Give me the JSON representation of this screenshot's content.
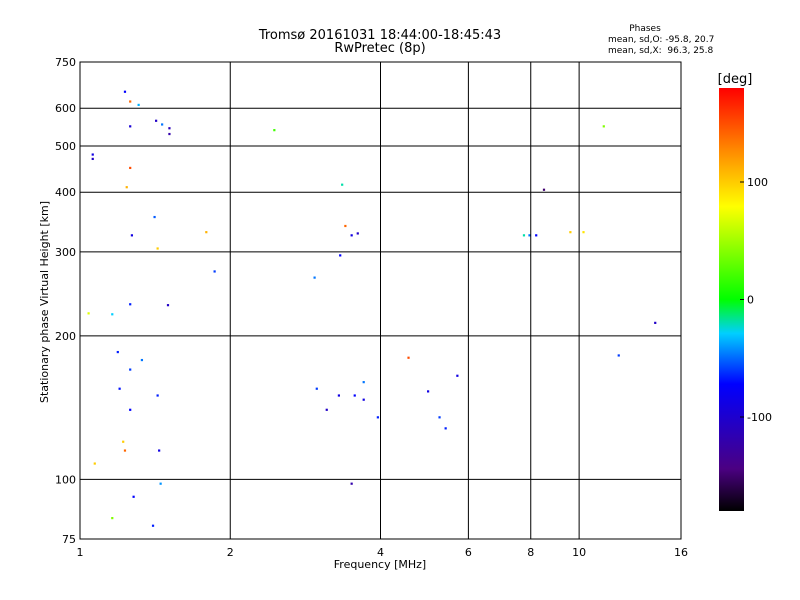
{
  "chart_data": {
    "type": "scatter",
    "title": "Tromsø 20161031 18:44:00-18:45:43",
    "subtitle": "RwPretec (8p)",
    "xlabel": "Frequency [MHz]",
    "ylabel": "Stationary phase Virtual Height [km]",
    "x_scale": "log",
    "y_scale": "log",
    "xlim": [
      1,
      16
    ],
    "ylim": [
      75,
      750
    ],
    "x_ticks": [
      1,
      2,
      4,
      6,
      8,
      10,
      16
    ],
    "y_ticks": [
      75,
      100,
      200,
      300,
      400,
      500,
      600,
      750
    ],
    "grid": true,
    "legend": {
      "heading": "Phases",
      "line_o": "mean, sd,O: -95.8, 20.7",
      "line_x": "mean, sd,X:  96.3, 25.8",
      "placement": "top-right"
    },
    "colorbar": {
      "label": "[deg]",
      "ticks": [
        100,
        0,
        -100
      ],
      "range": [
        -180,
        180
      ],
      "colormap": "rainbow (black-purple-blue-cyan-green-yellow-red)"
    },
    "series": [
      {
        "points": [
          [
            1.06,
            480,
            -110
          ],
          [
            1.06,
            470,
            -120
          ],
          [
            1.23,
            650,
            -100
          ],
          [
            1.26,
            550,
            -115
          ],
          [
            1.31,
            610,
            -40
          ],
          [
            1.42,
            565,
            -120
          ],
          [
            1.46,
            555,
            -60
          ],
          [
            1.51,
            530,
            -130
          ],
          [
            1.51,
            545,
            -125
          ],
          [
            1.27,
            325,
            -110
          ],
          [
            1.41,
            355,
            -70
          ],
          [
            1.43,
            305,
            100
          ],
          [
            1.79,
            330,
            110
          ],
          [
            1.86,
            273,
            -80
          ],
          [
            1.26,
            233,
            -90
          ],
          [
            1.5,
            232,
            -120
          ],
          [
            1.16,
            222,
            -30
          ],
          [
            1.04,
            223,
            70
          ],
          [
            1.24,
            410,
            110
          ],
          [
            1.26,
            450,
            150
          ],
          [
            1.26,
            620,
            140
          ],
          [
            1.19,
            185,
            -90
          ],
          [
            1.26,
            170,
            -80
          ],
          [
            1.33,
            178,
            -60
          ],
          [
            1.2,
            155,
            -95
          ],
          [
            1.26,
            140,
            -100
          ],
          [
            1.43,
            150,
            -90
          ],
          [
            1.22,
            120,
            100
          ],
          [
            1.23,
            115,
            140
          ],
          [
            1.44,
            115,
            -110
          ],
          [
            1.07,
            108,
            100
          ],
          [
            1.45,
            98,
            -50
          ],
          [
            1.28,
            92,
            -100
          ],
          [
            1.16,
            83,
            40
          ],
          [
            1.4,
            80,
            -90
          ],
          [
            2.45,
            540,
            20
          ],
          [
            3.35,
            415,
            -20
          ],
          [
            3.4,
            340,
            140
          ],
          [
            3.5,
            325,
            -110
          ],
          [
            3.6,
            328,
            -120
          ],
          [
            3.32,
            295,
            -100
          ],
          [
            2.95,
            265,
            -60
          ],
          [
            2.98,
            155,
            -80
          ],
          [
            3.3,
            150,
            -110
          ],
          [
            3.55,
            150,
            -100
          ],
          [
            3.7,
            160,
            -60
          ],
          [
            4.55,
            180,
            150
          ],
          [
            4.98,
            153,
            -110
          ],
          [
            5.7,
            165,
            -110
          ],
          [
            3.7,
            147,
            -110
          ],
          [
            3.95,
            135,
            -90
          ],
          [
            5.25,
            135,
            -80
          ],
          [
            5.4,
            128,
            -90
          ],
          [
            3.12,
            140,
            -120
          ],
          [
            3.5,
            98,
            -130
          ],
          [
            8.5,
            405,
            -150
          ],
          [
            7.75,
            325,
            -20
          ],
          [
            7.95,
            325,
            -60
          ],
          [
            8.2,
            325,
            -100
          ],
          [
            9.6,
            330,
            100
          ],
          [
            10.2,
            330,
            90
          ],
          [
            11.2,
            550,
            40
          ],
          [
            12.0,
            182,
            -80
          ],
          [
            14.2,
            213,
            -120
          ]
        ]
      }
    ]
  }
}
